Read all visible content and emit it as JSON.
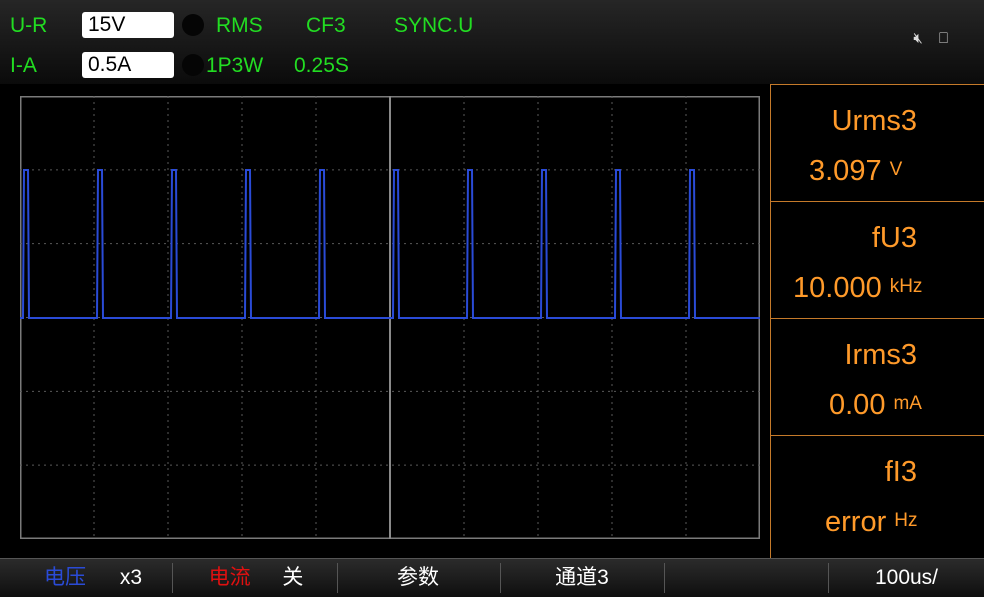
{
  "status": {
    "voltage_range_label": "U-R",
    "voltage_range_value": "15V",
    "current_range_label": "I-A",
    "current_range_value": "0.5A",
    "mode": "RMS",
    "crest_factor": "CF3",
    "sync": "SYNC.U",
    "wiring": "1P3W",
    "update_rate": "0.25S",
    "icons": [
      "speaker-mute-icon",
      "usb-icon"
    ]
  },
  "params": [
    {
      "name": "Urms",
      "channel": "3",
      "value": "3.097",
      "unit": "V"
    },
    {
      "name": "fU",
      "channel": "3",
      "value": "10.000",
      "unit": "kHz"
    },
    {
      "name": "Irms",
      "channel": "3",
      "value": "0.00",
      "unit": "mA"
    },
    {
      "name": "fI",
      "channel": "3",
      "value": "error",
      "unit": "Hz"
    }
  ],
  "softkeys": {
    "voltage_label": "电压",
    "voltage_value": "x3",
    "current_label": "电流",
    "current_value": "关",
    "params_label": "参数",
    "channel_label": "通道3",
    "timebase": "100us/"
  },
  "colors": {
    "status_text": "#22dd22",
    "param_text": "#ff9a2a",
    "voltage_trace": "#2a4bd7",
    "voltage_softkey": "#2a4bd7",
    "current_softkey": "#e01010",
    "grid": "#7a7a7a"
  }
}
